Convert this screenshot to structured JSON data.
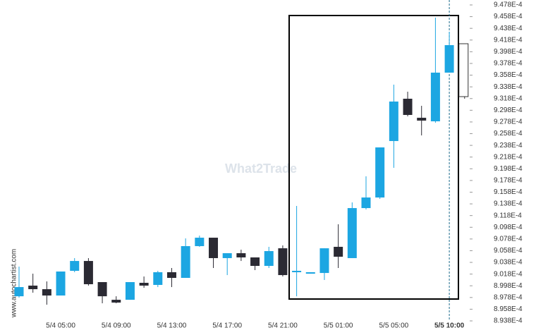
{
  "chart_data": {
    "type": "candlestick",
    "watermark": "What2Trade",
    "source": "www.autochartist.com",
    "up_color": "#1ca6e2",
    "down_color": "#2b2a33",
    "categories": [
      null,
      null,
      null,
      "5/4 05:00",
      null,
      null,
      null,
      "5/4 09:00",
      null,
      null,
      null,
      "5/4 13:00",
      null,
      null,
      null,
      "5/4 17:00",
      null,
      null,
      null,
      "5/4 21:00",
      null,
      null,
      null,
      "5/5 01:00",
      null,
      null,
      null,
      "5/5 05:00",
      null,
      null,
      null,
      "5/5 10:00"
    ],
    "open": [
      0.00089801,
      0.00089983,
      0.00089922,
      0.00089814,
      0.00090236,
      0.00090404,
      0.00090043,
      0.00089741,
      0.00089741,
      0.00090031,
      0.00089995,
      0.00090212,
      0.00090115,
      0.00090658,
      0.00090802,
      0.00090453,
      0.00090537,
      0.00090465,
      0.0009032,
      0.00090621,
      0.00090212,
      0.00090187,
      0.00090199,
      0.00090646,
      0.00090453,
      0.00091308,
      0.00091489,
      0.00092454,
      0.00093177,
      0.00092852,
      0.00092791,
      0.00093623
    ],
    "high": [
      0.00090308,
      0.00090187,
      0.00090055,
      0.00090224,
      0.00090453,
      0.00090453,
      0.00090043,
      0.00089801,
      0.00090043,
      0.00090139,
      0.00090236,
      0.00090284,
      0.0009079,
      0.00090838,
      0.00090802,
      0.00090537,
      0.00090597,
      0.00090465,
      0.00090646,
      0.0009067,
      0.00091345,
      0.00090212,
      0.00090621,
      0.00091031,
      0.00091405,
      0.00091851,
      0.00092345,
      0.00093418,
      0.00093297,
      0.00093056,
      0.00094563,
      0.00094322
    ],
    "low": [
      0.00089778,
      0.00089862,
      0.00089657,
      0.00089814,
      0.00090212,
      0.00089983,
      0.00089681,
      0.00089681,
      0.00089741,
      0.00089946,
      0.00089958,
      0.00089958,
      0.00090115,
      0.00090646,
      0.00090284,
      0.00090163,
      0.00090404,
      0.00090248,
      0.00090284,
      0.00090139,
      0.00089801,
      0.00090187,
      0.00090079,
      0.00090284,
      0.00090453,
      0.00091284,
      0.00091465,
      0.00091996,
      0.00092876,
      0.0009255,
      0.00092767,
      0.00093623
    ],
    "close": [
      0.00089958,
      0.00089922,
      0.00089814,
      0.00090224,
      0.00090404,
      0.00090007,
      0.00089801,
      0.00089693,
      0.00090043,
      0.00089983,
      0.00090212,
      0.00090115,
      0.00090658,
      0.00090802,
      0.00090453,
      0.00090537,
      0.00090465,
      0.0009032,
      0.00090573,
      0.00090163,
      0.00090236,
      0.00090212,
      0.00090621,
      0.00090477,
      0.00091308,
      0.00091489,
      0.00092345,
      0.00093129,
      0.000929,
      0.00092803,
      0.00093623,
      0.00094093
    ],
    "projection": {
      "open": 0.00094117,
      "high": 0.00094117,
      "low": 0.00093177,
      "close": 0.00093213
    },
    "ylim": [
      0.0008938,
      0.0009478
    ],
    "yticks": [
      {
        "value": 0.0009478,
        "label": "9.478E-4"
      },
      {
        "value": 0.0009458,
        "label": "9.458E-4"
      },
      {
        "value": 0.0009438,
        "label": "9.438E-4"
      },
      {
        "value": 0.0009418,
        "label": "9.418E-4"
      },
      {
        "value": 0.0009398,
        "label": "9.398E-4"
      },
      {
        "value": 0.0009378,
        "label": "9.378E-4"
      },
      {
        "value": 0.0009358,
        "label": "9.358E-4"
      },
      {
        "value": 0.0009338,
        "label": "9.338E-4"
      },
      {
        "value": 0.0009318,
        "label": "9.318E-4"
      },
      {
        "value": 0.0009298,
        "label": "9.298E-4"
      },
      {
        "value": 0.0009278,
        "label": "9.278E-4"
      },
      {
        "value": 0.0009258,
        "label": "9.258E-4"
      },
      {
        "value": 0.0009238,
        "label": "9.238E-4"
      },
      {
        "value": 0.0009218,
        "label": "9.218E-4"
      },
      {
        "value": 0.0009198,
        "label": "9.198E-4"
      },
      {
        "value": 0.0009178,
        "label": "9.178E-4"
      },
      {
        "value": 0.0009158,
        "label": "9.158E-4"
      },
      {
        "value": 0.0009138,
        "label": "9.138E-4"
      },
      {
        "value": 0.0009118,
        "label": "9.118E-4"
      },
      {
        "value": 0.0009098,
        "label": "9.098E-4"
      },
      {
        "value": 0.0009078,
        "label": "9.078E-4"
      },
      {
        "value": 0.0009058,
        "label": "9.058E-4"
      },
      {
        "value": 0.0009038,
        "label": "9.038E-4"
      },
      {
        "value": 0.0009018,
        "label": "9.018E-4"
      },
      {
        "value": 0.0008998,
        "label": "8.998E-4"
      },
      {
        "value": 0.0008978,
        "label": "8.978E-4"
      },
      {
        "value": 0.0008958,
        "label": "8.958E-4"
      },
      {
        "value": 0.0008938,
        "label": "8.938E-4"
      }
    ]
  }
}
